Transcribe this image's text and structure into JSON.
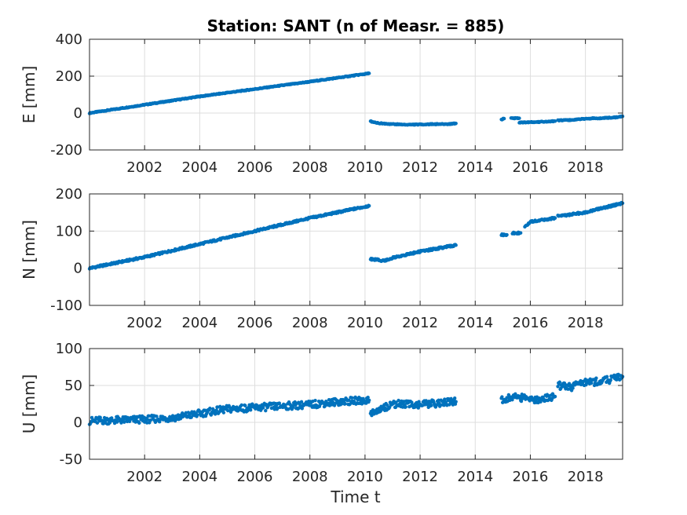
{
  "chart_data": {
    "type": "scatter",
    "title": "Station: SANT (n of Measr. = 885)",
    "xlabel": "Time t",
    "x_unit": "year",
    "xlim": [
      2000.0,
      2019.35
    ],
    "x_ticks": [
      2002,
      2004,
      2006,
      2008,
      2010,
      2012,
      2014,
      2016,
      2018
    ],
    "grid": true,
    "marker_color": "#0072bd",
    "panels": [
      {
        "ylabel": "E [mm]",
        "ylim": [
          -200,
          400
        ],
        "y_ticks": [
          -200,
          0,
          200,
          400
        ],
        "segments": [
          {
            "x": [
              2000.0,
              2002.0,
              2004.0,
              2006.0,
              2008.0,
              2010.15
            ],
            "y": [
              0,
              45,
              90,
              130,
              170,
              215
            ]
          },
          {
            "x": [
              2010.2,
              2010.5,
              2011.0,
              2011.5,
              2012.0,
              2012.5,
              2013.0,
              2013.3
            ],
            "y": [
              -45,
              -55,
              -60,
              -63,
              -62,
              -60,
              -60,
              -56
            ]
          },
          {
            "x": [
              2014.95,
              2015.05
            ],
            "y": [
              -35,
              -30
            ]
          },
          {
            "x": [
              2015.3,
              2015.6
            ],
            "y": [
              -28,
              -28
            ]
          },
          {
            "x": [
              2015.6,
              2016.0,
              2016.5,
              2016.9
            ],
            "y": [
              -52,
              -50,
              -47,
              -44
            ]
          },
          {
            "x": [
              2017.0,
              2017.5,
              2018.0,
              2018.5,
              2019.0,
              2019.35
            ],
            "y": [
              -40,
              -38,
              -30,
              -28,
              -25,
              -18
            ]
          }
        ]
      },
      {
        "ylabel": "N [mm]",
        "ylim": [
          -100,
          200
        ],
        "y_ticks": [
          -100,
          0,
          100,
          200
        ],
        "segments": [
          {
            "x": [
              2000.0,
              2002.0,
              2004.0,
              2006.0,
              2008.0,
              2010.15
            ],
            "y": [
              0,
              30,
              65,
              100,
              135,
              168
            ]
          },
          {
            "x": [
              2010.2,
              2010.7,
              2011.0,
              2012.0,
              2013.3
            ],
            "y": [
              25,
              20,
              28,
              45,
              62
            ]
          },
          {
            "x": [
              2014.95,
              2015.15
            ],
            "y": [
              90,
              90
            ]
          },
          {
            "x": [
              2015.35,
              2015.65
            ],
            "y": [
              95,
              95
            ]
          },
          {
            "x": [
              2015.8,
              2016.0,
              2016.9
            ],
            "y": [
              110,
              125,
              135
            ]
          },
          {
            "x": [
              2017.0,
              2017.5,
              2018.0,
              2018.5,
              2019.35
            ],
            "y": [
              140,
              145,
              150,
              160,
              175
            ]
          }
        ]
      },
      {
        "ylabel": "U [mm]",
        "ylim": [
          -50,
          100
        ],
        "y_ticks": [
          -50,
          0,
          50,
          100
        ],
        "segments": [
          {
            "x": [
              2000.0,
              2001.0,
              2002.0,
              2003.0,
              2004.0,
              2005.0,
              2006.0,
              2007.0,
              2008.0,
              2009.0,
              2010.15
            ],
            "y": [
              2,
              3,
              4,
              6,
              12,
              18,
              20,
              22,
              24,
              28,
              30
            ]
          },
          {
            "x": [
              2010.2,
              2011.0,
              2012.0,
              2013.3
            ],
            "y": [
              12,
              25,
              24,
              28
            ]
          },
          {
            "x": [
              2014.95,
              2015.5,
              2016.0,
              2016.9
            ],
            "y": [
              30,
              35,
              30,
              35
            ]
          },
          {
            "x": [
              2017.0,
              2017.5,
              2018.0,
              2018.5,
              2019.35
            ],
            "y": [
              50,
              48,
              55,
              55,
              62
            ]
          }
        ]
      }
    ]
  }
}
